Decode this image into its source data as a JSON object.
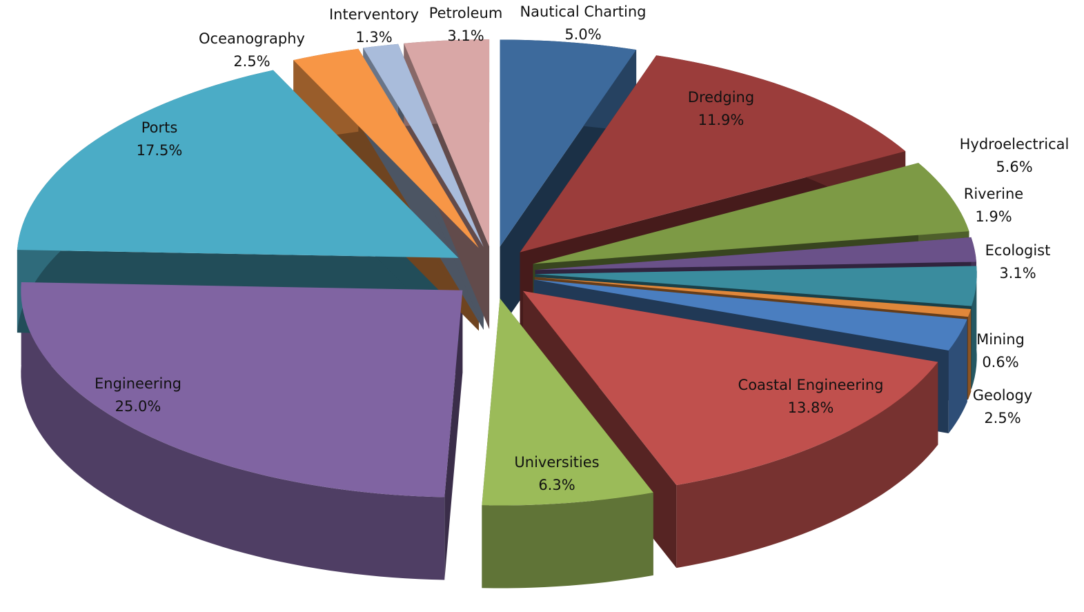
{
  "chart_data": {
    "type": "pie3d",
    "categories": [
      "Nautical Charting",
      "Dredging",
      "Hydroelectrical",
      "Riverine",
      "Ecologist",
      "Mining",
      "Geology",
      "Coastal Engineering",
      "Universities",
      "Engineering",
      "Ports",
      "Oceanography",
      "Interventory",
      "Petroleum"
    ],
    "values": [
      5.0,
      11.9,
      5.6,
      1.9,
      3.1,
      0.6,
      2.5,
      13.8,
      6.3,
      25.0,
      17.5,
      2.5,
      1.3,
      3.1
    ],
    "value_labels": [
      "5.0%",
      "11.9%",
      "5.6%",
      "1.9%",
      "3.1%",
      "0.6%",
      "2.5%",
      "13.8%",
      "6.3%",
      "25.0%",
      "17.5%",
      "2.5%",
      "1.3%",
      "3.1%"
    ],
    "colors": [
      "#3d6a9c",
      "#9b3d3b",
      "#7d9a45",
      "#6a5189",
      "#3a8c9e",
      "#e0873a",
      "#4a7ec0",
      "#c0504d",
      "#9bbb59",
      "#8064a2",
      "#4bacc6",
      "#f79646",
      "#a9bcdb",
      "#d9a7a6"
    ]
  }
}
